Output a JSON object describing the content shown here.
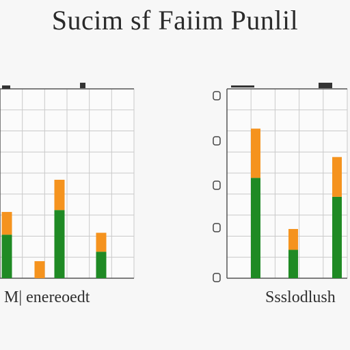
{
  "title": "Sucim sf Faiim Punlil",
  "colors": {
    "green": "#1f8a24",
    "orange": "#f5931e",
    "grid": "#c9c9c9",
    "axis": "#555555",
    "background": "#f7f7f7"
  },
  "chart_data": [
    {
      "type": "bar",
      "stacked": true,
      "caption": "M| enereoedt",
      "grid": true,
      "ylim": [
        0,
        10
      ],
      "categories": [
        "",
        "",
        "",
        ""
      ],
      "series": [
        {
          "values": [
            2.3,
            0,
            3.6,
            1.4
          ],
          "color": "#1f8a24"
        },
        {
          "values": [
            1.2,
            0.9,
            1.6,
            1.0
          ],
          "color": "#f5931e"
        }
      ]
    },
    {
      "type": "bar",
      "stacked": true,
      "caption": "Ssslodlush",
      "grid": true,
      "ylim": [
        0,
        10
      ],
      "categories": [
        "",
        "",
        ""
      ],
      "series": [
        {
          "values": [
            5.3,
            1.5,
            4.3
          ],
          "color": "#1f8a24"
        },
        {
          "values": [
            2.6,
            1.1,
            2.1
          ],
          "color": "#f5931e"
        }
      ]
    }
  ]
}
